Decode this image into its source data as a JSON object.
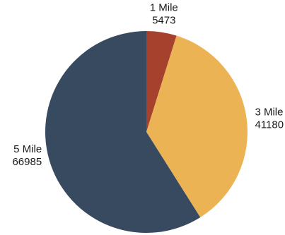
{
  "chart_data": {
    "type": "pie",
    "start_angle_deg": 0,
    "direction": "clockwise",
    "slices": [
      {
        "label": "1 Mile",
        "value": 5473,
        "value_label": "5473",
        "color": "#A5412C"
      },
      {
        "label": "3 Mile",
        "value": 41180,
        "value_label": "41180",
        "color": "#ECB354"
      },
      {
        "label": "5 Mile",
        "value": 66985,
        "value_label": "66985",
        "color": "#374A5F"
      }
    ],
    "legend": "none",
    "data_labels": "outside"
  }
}
